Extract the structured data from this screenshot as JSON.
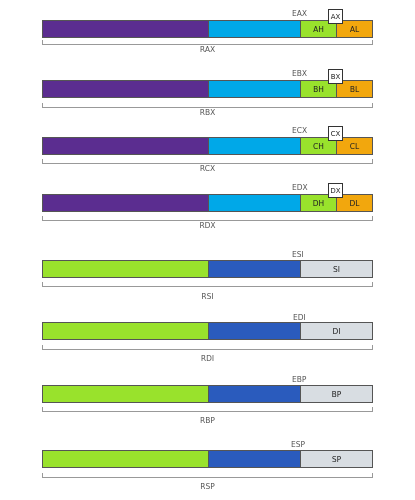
{
  "colors": {
    "purple": "#5b2d90",
    "cyan": "#00a8e8",
    "lime": "#99e22c",
    "orange": "#f2a70d",
    "blue": "#2a5bbd",
    "light_gray": "#d8dde2"
  },
  "general_registers": [
    {
      "name": "RAX",
      "r32": "EAX",
      "r16": "AX",
      "hi8": "AH",
      "lo8": "AL"
    },
    {
      "name": "RBX",
      "r32": "EBX",
      "r16": "BX",
      "hi8": "BH",
      "lo8": "BL"
    },
    {
      "name": "RCX",
      "r32": "ECX",
      "r16": "CX",
      "hi8": "CH",
      "lo8": "CL"
    },
    {
      "name": "RDX",
      "r32": "EDX",
      "r16": "DX",
      "hi8": "DH",
      "lo8": "DL"
    }
  ],
  "index_registers": [
    {
      "name": "RSI",
      "r32": "ESI",
      "r16": "SI"
    },
    {
      "name": "RDI",
      "r32": "EDI",
      "r16": "DI"
    },
    {
      "name": "RBP",
      "r32": "EBP",
      "r16": "BP"
    },
    {
      "name": "RSP",
      "r32": "ESP",
      "r16": "SP"
    }
  ]
}
